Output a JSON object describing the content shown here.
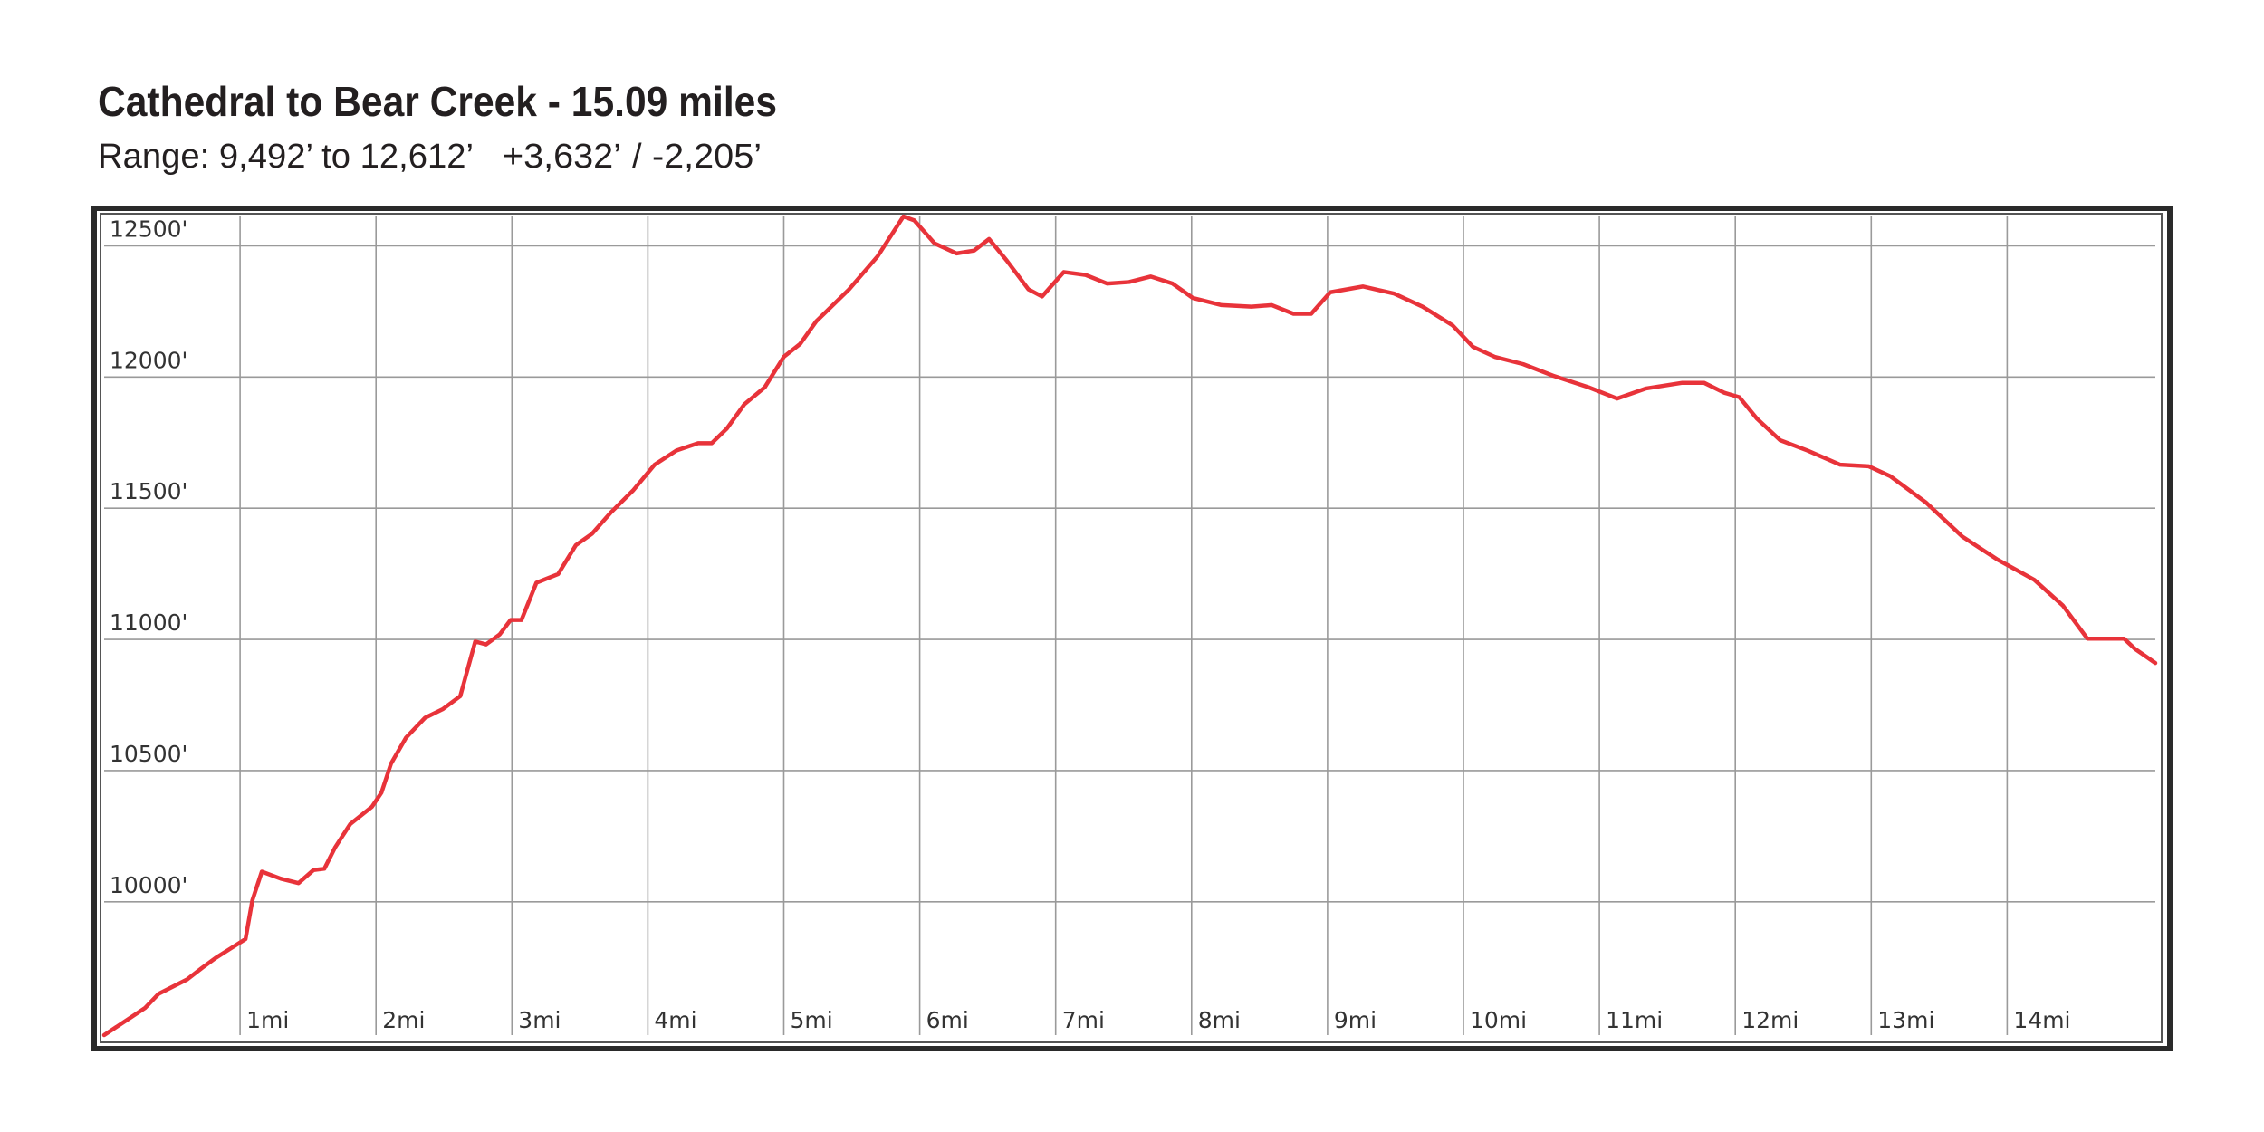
{
  "chart_data": {
    "type": "line",
    "title": "Cathedral to Bear Creek - 15.09 miles",
    "subtitle": {
      "range": "Range: 9,492’ to 12,612’",
      "gain": "+3,632’",
      "separator": "/",
      "loss": "-2,205’"
    },
    "gain_color": "#2e7d32",
    "loss_color": "#c62828",
    "color": "#e8333a",
    "grid": true,
    "xlim": [
      0,
      15.09
    ],
    "ylim": [
      9492,
      12612
    ],
    "xticks": [
      {
        "value": 1,
        "label": "1mi"
      },
      {
        "value": 2,
        "label": "2mi"
      },
      {
        "value": 3,
        "label": "3mi"
      },
      {
        "value": 4,
        "label": "4mi"
      },
      {
        "value": 5,
        "label": "5mi"
      },
      {
        "value": 6,
        "label": "6mi"
      },
      {
        "value": 7,
        "label": "7mi"
      },
      {
        "value": 8,
        "label": "8mi"
      },
      {
        "value": 9,
        "label": "9mi"
      },
      {
        "value": 10,
        "label": "10mi"
      },
      {
        "value": 11,
        "label": "11mi"
      },
      {
        "value": 12,
        "label": "12mi"
      },
      {
        "value": 13,
        "label": "13mi"
      },
      {
        "value": 14,
        "label": "14mi"
      }
    ],
    "yticks": [
      {
        "value": 10000,
        "label": "10000'"
      },
      {
        "value": 10500,
        "label": "10500'"
      },
      {
        "value": 11000,
        "label": "11000'"
      },
      {
        "value": 11500,
        "label": "11500'"
      },
      {
        "value": 12000,
        "label": "12000'"
      },
      {
        "value": 12500,
        "label": "12500'"
      }
    ],
    "x": [
      0,
      0.3,
      0.4,
      0.61,
      0.72,
      0.82,
      1.04,
      1.09,
      1.16,
      1.3,
      1.43,
      1.54,
      1.62,
      1.7,
      1.81,
      1.97,
      2.04,
      2.11,
      2.22,
      2.36,
      2.49,
      2.62,
      2.73,
      2.81,
      2.91,
      2.99,
      3.07,
      3.18,
      3.34,
      3.47,
      3.59,
      3.73,
      3.89,
      4.05,
      4.21,
      4.37,
      4.47,
      4.58,
      4.71,
      4.86,
      5.0,
      5.12,
      5.24,
      5.48,
      5.69,
      5.88,
      5.96,
      6.11,
      6.27,
      6.4,
      6.51,
      6.64,
      6.8,
      6.9,
      7.06,
      7.22,
      7.38,
      7.54,
      7.7,
      7.86,
      8.01,
      8.22,
      8.44,
      8.59,
      8.75,
      8.88,
      9.02,
      9.26,
      9.49,
      9.7,
      9.92,
      10.07,
      10.23,
      10.44,
      10.66,
      10.92,
      11.13,
      11.34,
      11.61,
      11.77,
      11.92,
      12.03,
      12.16,
      12.33,
      12.53,
      12.77,
      12.98,
      13.14,
      13.4,
      13.67,
      13.93,
      14.2,
      14.41,
      14.59,
      14.86,
      14.94,
      15.09
    ],
    "values": [
      9492,
      9595,
      9649,
      9704,
      9748,
      9786,
      9858,
      10005,
      10115,
      10088,
      10071,
      10121,
      10126,
      10208,
      10296,
      10362,
      10416,
      10526,
      10625,
      10701,
      10734,
      10784,
      10992,
      10981,
      11019,
      11074,
      11074,
      11216,
      11249,
      11359,
      11403,
      11485,
      11567,
      11666,
      11720,
      11748,
      11748,
      11803,
      11896,
      11961,
      12077,
      12126,
      12213,
      12334,
      12460,
      12612,
      12597,
      12509,
      12471,
      12482,
      12526,
      12444,
      12334,
      12307,
      12400,
      12389,
      12356,
      12362,
      12383,
      12356,
      12301,
      12274,
      12268,
      12274,
      12241,
      12241,
      12323,
      12345,
      12318,
      12268,
      12197,
      12115,
      12077,
      12049,
      12005,
      11961,
      11918,
      11956,
      11978,
      11978,
      11940,
      11923,
      11841,
      11759,
      11720,
      11666,
      11660,
      11622,
      11523,
      11392,
      11304,
      11227,
      11129,
      11003,
      11003,
      10964,
      10910
    ]
  }
}
